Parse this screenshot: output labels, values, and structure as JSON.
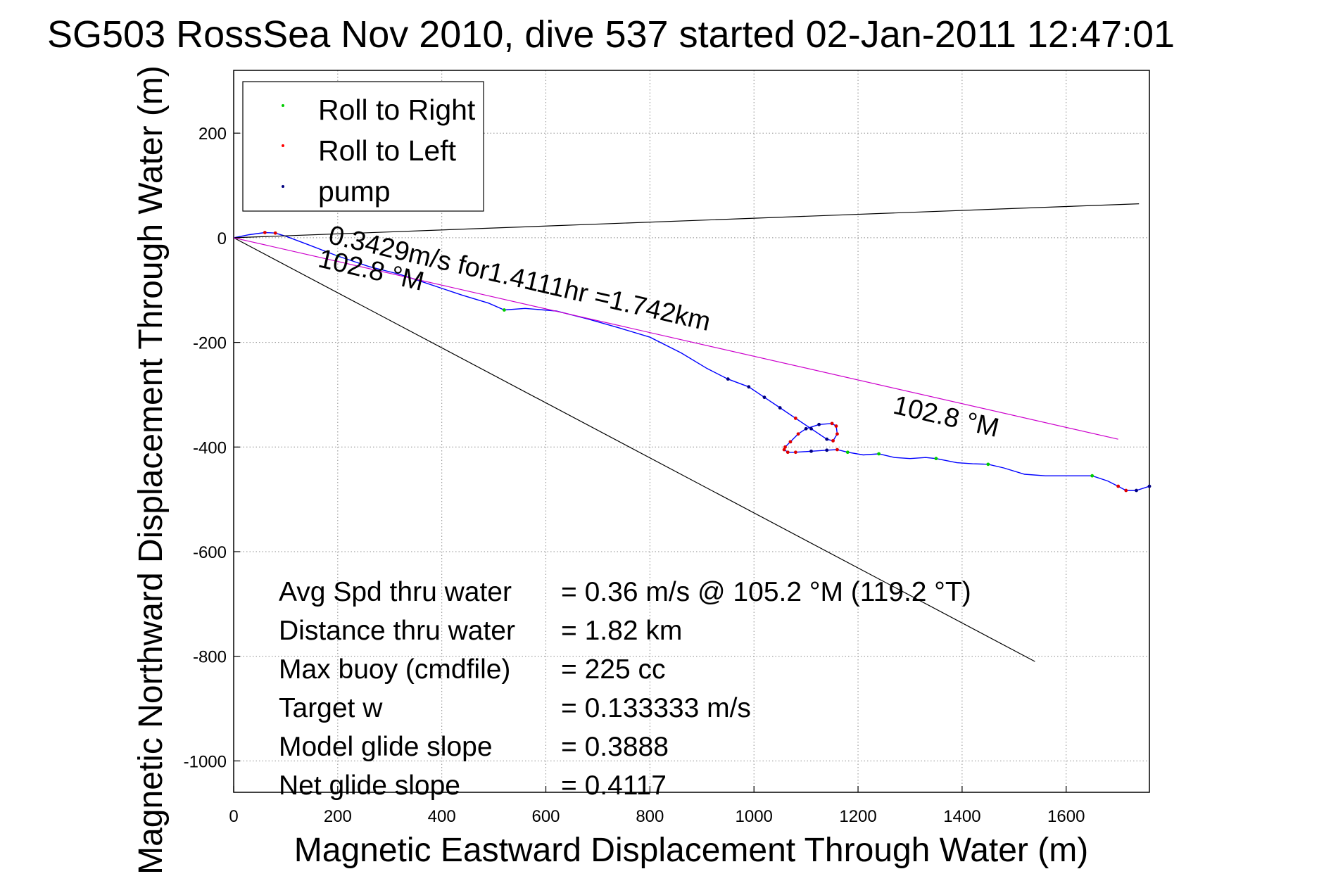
{
  "chart_data": {
    "type": "line",
    "title": "SG503 RossSea Nov 2010, dive 537 started 02-Jan-2011 12:47:01",
    "xlabel": "Magnetic Eastward Displacement Through Water (m)",
    "ylabel": "Magnetic Northward Displacement Through Water (m)",
    "xlim": [
      0,
      1760
    ],
    "ylim": [
      -1060,
      320
    ],
    "xticks": [
      0,
      200,
      400,
      600,
      800,
      1000,
      1200,
      1400,
      1600
    ],
    "yticks": [
      200,
      0,
      -200,
      -400,
      -600,
      -800,
      -1000
    ],
    "grid": true,
    "legend": {
      "placement": "top-left",
      "entries": [
        {
          "label": "Roll to Right",
          "color": "#00cc00"
        },
        {
          "label": "Roll to Left",
          "color": "#ff0000"
        },
        {
          "label": "pump",
          "color": "#000080"
        }
      ]
    },
    "series": [
      {
        "color": "#0000ff",
        "x": [
          0,
          30,
          60,
          80,
          100,
          140,
          200,
          260,
          320,
          380,
          440,
          490,
          520,
          560,
          620,
          680,
          740,
          800,
          860,
          910,
          950,
          990,
          1020,
          1050,
          1080,
          1110,
          1140,
          1152,
          1160,
          1158,
          1150,
          1125,
          1100,
          1085,
          1070,
          1060,
          1058,
          1065,
          1080,
          1110,
          1140,
          1160,
          1180,
          1210,
          1240,
          1270,
          1300,
          1330,
          1350,
          1390,
          1420,
          1450,
          1480,
          1520,
          1560,
          1600,
          1650,
          1680,
          1700,
          1715,
          1735,
          1760
        ],
        "y": [
          0,
          6,
          10,
          9,
          3,
          -12,
          -35,
          -55,
          -70,
          -90,
          -110,
          -125,
          -138,
          -135,
          -140,
          -155,
          -172,
          -190,
          -220,
          -250,
          -270,
          -285,
          -305,
          -325,
          -345,
          -365,
          -385,
          -388,
          -375,
          -360,
          -355,
          -357,
          -365,
          -375,
          -390,
          -400,
          -405,
          -410,
          -410,
          -408,
          -406,
          -405,
          -410,
          -415,
          -413,
          -420,
          -422,
          -420,
          -422,
          -430,
          -432,
          -433,
          -440,
          -452,
          -455,
          -455,
          -455,
          -465,
          -475,
          -483,
          -483,
          -475
        ]
      },
      {
        "color": "#000000",
        "x": [
          0,
          1740
        ],
        "y": [
          0,
          65
        ]
      },
      {
        "color": "#000000",
        "x": [
          0,
          1540
        ],
        "y": [
          0,
          -810
        ]
      },
      {
        "color": "#cc00cc",
        "x": [
          0,
          1700
        ],
        "y": [
          0,
          -385
        ]
      }
    ],
    "annotations": [
      {
        "text": "0.3429m/s for1.4111hr =1.742km",
        "x": 180,
        "y": -10,
        "rotation_deg": 13
      },
      {
        "text": "102.8 °M",
        "x": 160,
        "y": -55,
        "rotation_deg": 13
      },
      {
        "text": "102.8 °M",
        "x": 1265,
        "y": -335,
        "rotation_deg": 13
      }
    ],
    "stats": [
      {
        "label": "Avg Spd thru water",
        "value": "=  0.36 m/s @ 105.2 °M (119.2 °T)"
      },
      {
        "label": "Distance thru water",
        "value": "=  1.82 km"
      },
      {
        "label": "Max buoy (cmdfile)",
        "value": "= 225 cc"
      },
      {
        "label": "Target w",
        "value": "= 0.133333 m/s"
      },
      {
        "label": "Model glide slope",
        "value": "= 0.3888"
      },
      {
        "label": "Net glide slope",
        "value": "= 0.4117"
      }
    ]
  }
}
